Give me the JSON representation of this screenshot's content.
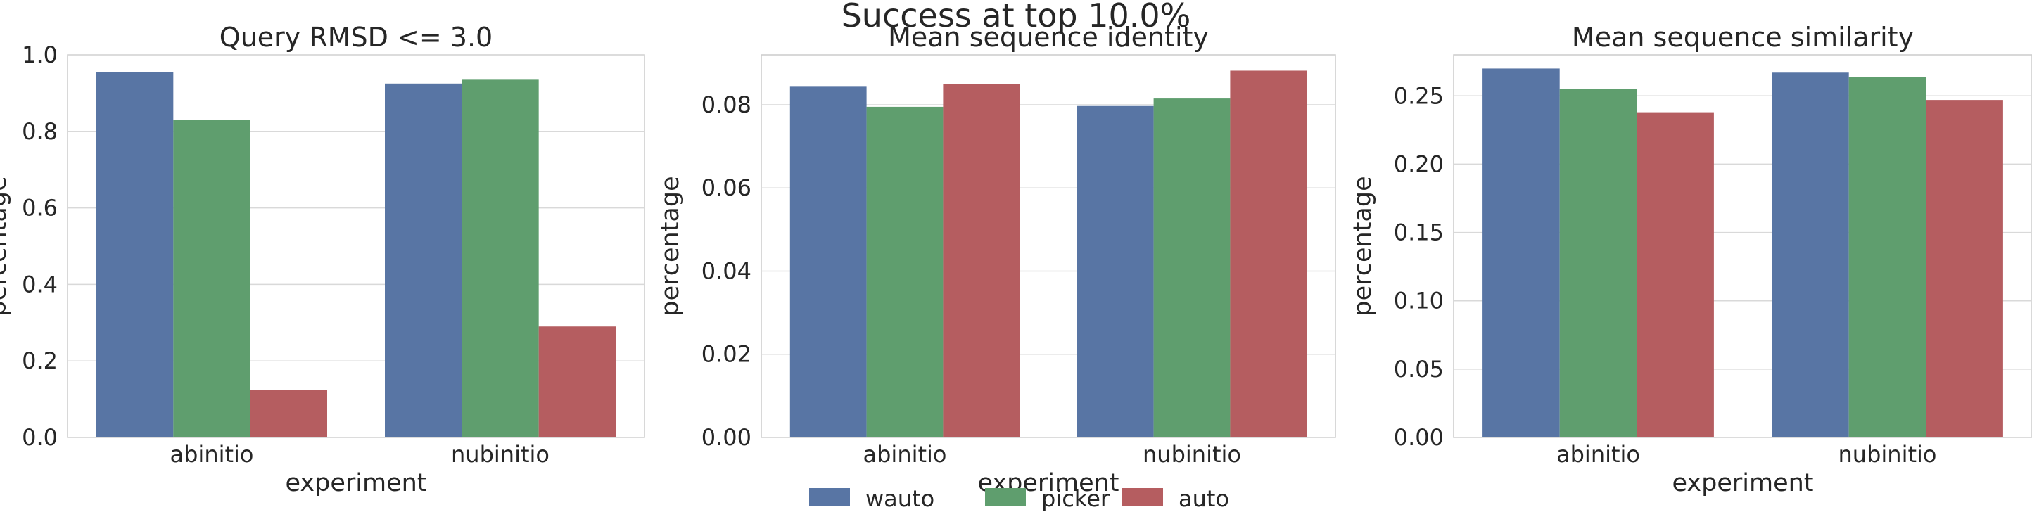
{
  "figure_title": "Success at top 10.0%",
  "legend": {
    "placement": "bottom-center",
    "items": [
      {
        "label": "wauto",
        "color": "#5875a4"
      },
      {
        "label": "picker",
        "color": "#5f9e6e"
      },
      {
        "label": "auto",
        "color": "#b55d60"
      }
    ]
  },
  "chart_data": [
    {
      "type": "bar",
      "title": "Query RMSD <= 3.0",
      "xlabel": "experiment",
      "ylabel": "percentage",
      "categories": [
        "abinitio",
        "nubinitio"
      ],
      "ylim": [
        0,
        1.0
      ],
      "yticks": [
        0.0,
        0.2,
        0.4,
        0.6,
        0.8,
        1.0
      ],
      "yticklabels": [
        "0.0",
        "0.2",
        "0.4",
        "0.6",
        "0.8",
        "1.0"
      ],
      "grid": true,
      "series": [
        {
          "name": "wauto",
          "values": [
            0.955,
            0.925
          ]
        },
        {
          "name": "picker",
          "values": [
            0.83,
            0.935
          ]
        },
        {
          "name": "auto",
          "values": [
            0.125,
            0.29
          ]
        }
      ]
    },
    {
      "type": "bar",
      "title": "Mean sequence identity",
      "xlabel": "experiment",
      "ylabel": "percentage",
      "categories": [
        "abinitio",
        "nubinitio"
      ],
      "ylim": [
        0,
        0.092
      ],
      "yticks": [
        0.0,
        0.02,
        0.04,
        0.06,
        0.08
      ],
      "yticklabels": [
        "0.00",
        "0.02",
        "0.04",
        "0.06",
        "0.08"
      ],
      "grid": true,
      "series": [
        {
          "name": "wauto",
          "values": [
            0.0845,
            0.0797
          ]
        },
        {
          "name": "picker",
          "values": [
            0.0795,
            0.0815
          ]
        },
        {
          "name": "auto",
          "values": [
            0.085,
            0.0882
          ]
        }
      ]
    },
    {
      "type": "bar",
      "title": "Mean sequence similarity",
      "xlabel": "experiment",
      "ylabel": "percentage",
      "categories": [
        "abinitio",
        "nubinitio"
      ],
      "ylim": [
        0,
        0.28
      ],
      "yticks": [
        0.0,
        0.05,
        0.1,
        0.15,
        0.2,
        0.25
      ],
      "yticklabels": [
        "0.00",
        "0.05",
        "0.10",
        "0.15",
        "0.20",
        "0.25"
      ],
      "grid": true,
      "series": [
        {
          "name": "wauto",
          "values": [
            0.27,
            0.267
          ]
        },
        {
          "name": "picker",
          "values": [
            0.255,
            0.264
          ]
        },
        {
          "name": "auto",
          "values": [
            0.238,
            0.247
          ]
        }
      ]
    }
  ]
}
